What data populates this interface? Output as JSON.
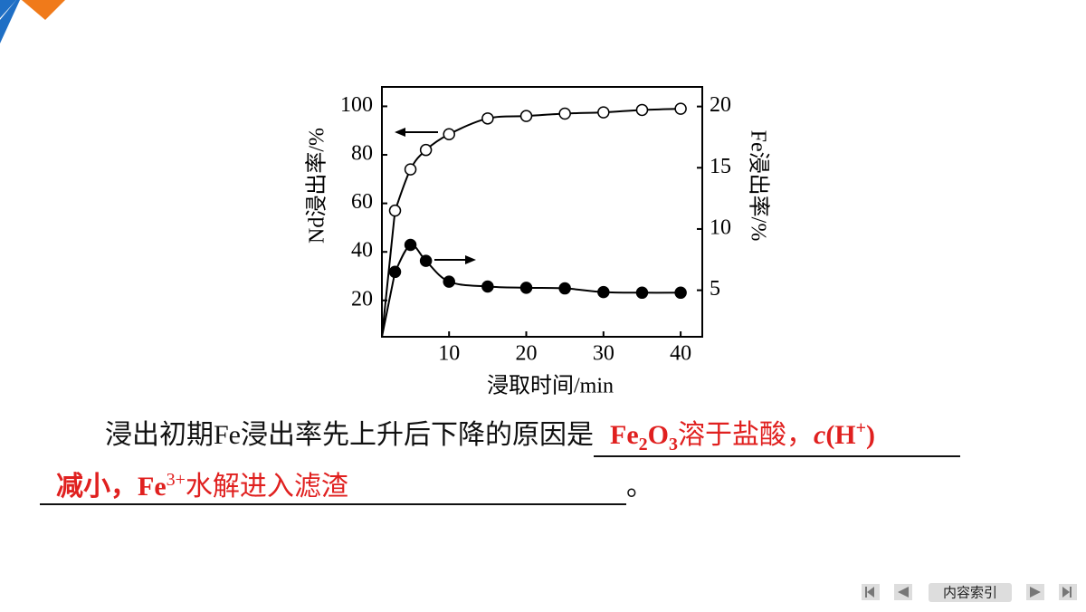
{
  "chart_data": {
    "type": "line",
    "x_label": "浸取时间/min",
    "y_label": "Nd浸出率/%",
    "y2_label": "Fe浸出率/%",
    "x": [
      3,
      5,
      7,
      10,
      15,
      20,
      25,
      30,
      35,
      40
    ],
    "series": [
      {
        "name": "Nd",
        "color": "#000000",
        "marker": "open",
        "values": [
          57,
          74,
          82,
          88.5,
          95,
          96,
          97,
          97.5,
          98.5,
          99
        ]
      },
      {
        "name": "Fe",
        "color": "#000000",
        "marker": "filled",
        "axis": "y2",
        "values": [
          6.5,
          8.7,
          7.4,
          5.7,
          5.3,
          5.2,
          5.15,
          4.85,
          4.8,
          4.8
        ]
      }
    ],
    "xlim": [
      1.3,
      42.8
    ],
    "xticks": [
      10,
      20,
      30,
      40
    ],
    "ylim": [
      5,
      108
    ],
    "yticks": [
      20,
      40,
      60,
      80,
      100
    ],
    "y2lim": [
      1.2,
      21.6
    ],
    "y2ticks": [
      5,
      10,
      15,
      20
    ]
  },
  "question": {
    "stem": "浸出初期Fe浸出率先上升后下降的原因是",
    "end": "。"
  },
  "answer": {
    "parts": [
      "Fe",
      "2",
      "O",
      "3",
      "溶于盐酸，",
      "c",
      "(H",
      "+",
      ")",
      "减小，Fe",
      "3+",
      "水解进入滤渣"
    ]
  },
  "nav": {
    "index": "内容索引"
  }
}
